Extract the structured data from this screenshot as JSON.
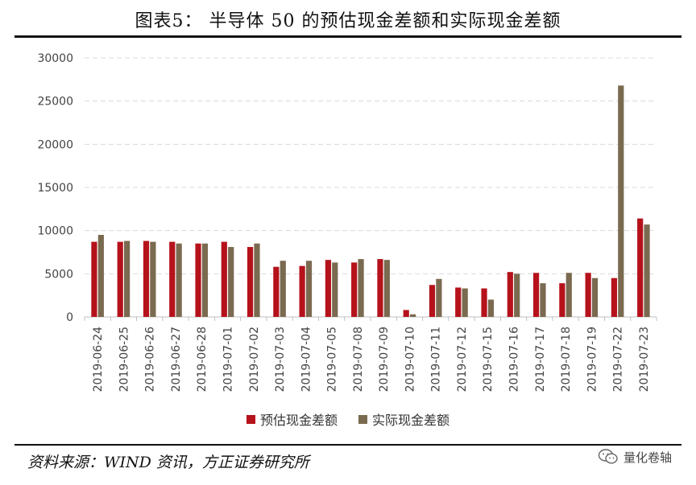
{
  "title": "图表5：  半导体 50 的预估现金差额和实际现金差额",
  "source": "资料来源：WIND 资讯，方正证券研究所",
  "watermark": "量化卷轴",
  "colors": {
    "estimated": "#B5121B",
    "actual": "#7A6A4F",
    "grid": "#D9D9D9",
    "axis": "#595959"
  },
  "chart_data": {
    "type": "bar",
    "categories": [
      "2019-06-24",
      "2019-06-25",
      "2019-06-26",
      "2019-06-27",
      "2019-06-28",
      "2019-07-01",
      "2019-07-02",
      "2019-07-03",
      "2019-07-04",
      "2019-07-05",
      "2019-07-08",
      "2019-07-09",
      "2019-07-10",
      "2019-07-11",
      "2019-07-12",
      "2019-07-15",
      "2019-07-16",
      "2019-07-17",
      "2019-07-18",
      "2019-07-19",
      "2019-07-22",
      "2019-07-23"
    ],
    "series": [
      {
        "name": "预估现金差额",
        "values": [
          8700,
          8700,
          8800,
          8700,
          8500,
          8700,
          8100,
          5800,
          5900,
          6600,
          6300,
          6700,
          800,
          3700,
          3400,
          3300,
          5200,
          5100,
          3900,
          5100,
          4500,
          11400
        ]
      },
      {
        "name": "实际现金差额",
        "values": [
          9500,
          8800,
          8700,
          8500,
          8500,
          8100,
          8500,
          6500,
          6500,
          6300,
          6700,
          6600,
          300,
          4400,
          3300,
          2000,
          5000,
          3900,
          5100,
          4500,
          26800,
          10700
        ]
      }
    ],
    "ylim": [
      0,
      30000
    ],
    "yticks": [
      0,
      5000,
      10000,
      15000,
      20000,
      25000,
      30000
    ],
    "grid": true,
    "legend": "bottom"
  }
}
